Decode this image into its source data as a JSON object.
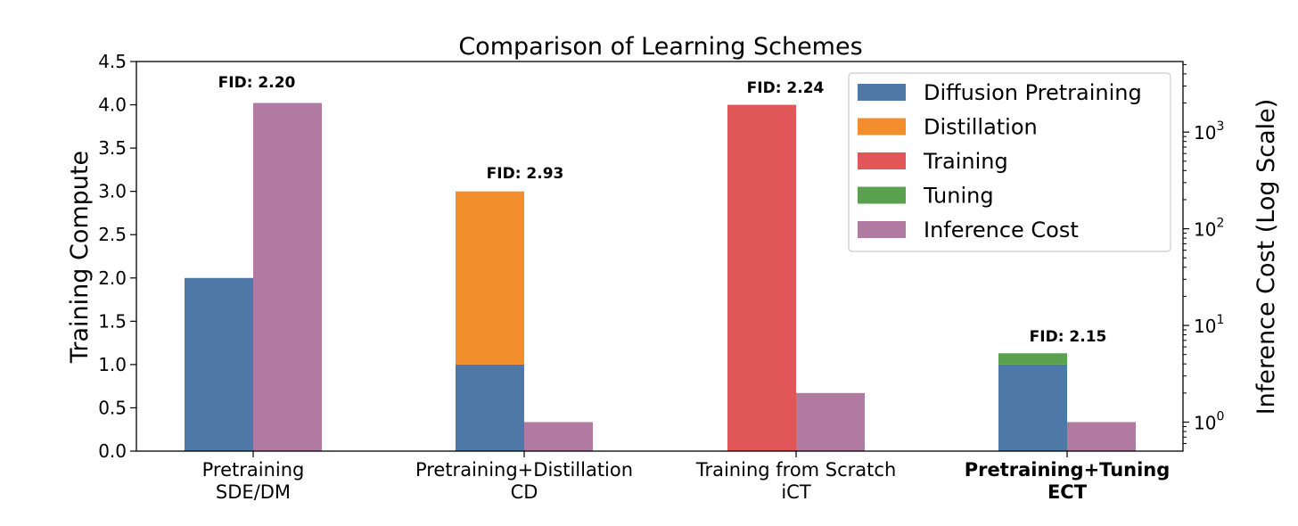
{
  "chart_data": {
    "type": "bar",
    "title": "Comparison of Learning Schemes",
    "ylabel": "Training Compute",
    "y2label": "Inference Cost (Log Scale)",
    "ylim": [
      0,
      4.5
    ],
    "yticks": [
      "0.0",
      "0.5",
      "1.0",
      "1.5",
      "2.0",
      "2.5",
      "3.0",
      "3.5",
      "4.0",
      "4.5"
    ],
    "y2scale": "log",
    "y2ticks": [
      {
        "base": "10",
        "exp": "0",
        "value": 1
      },
      {
        "base": "10",
        "exp": "1",
        "value": 10
      },
      {
        "base": "10",
        "exp": "2",
        "value": 100
      },
      {
        "base": "10",
        "exp": "3",
        "value": 1000
      }
    ],
    "categories": [
      {
        "line1": "Pretraining",
        "line2": "SDE/DM",
        "bold": false
      },
      {
        "line1": "Pretraining+Distillation",
        "line2": "CD",
        "bold": false
      },
      {
        "line1": "Training from Scratch",
        "line2": "iCT",
        "bold": false
      },
      {
        "line1": "Pretraining+Tuning",
        "line2": "ECT",
        "bold": true
      }
    ],
    "series": [
      {
        "name": "Diffusion Pretraining",
        "color": "#4e79a7",
        "values": [
          2.0,
          1.0,
          0,
          1.0
        ]
      },
      {
        "name": "Distillation",
        "color": "#f28e2b",
        "values": [
          0,
          2.0,
          0,
          0
        ]
      },
      {
        "name": "Training",
        "color": "#e15759",
        "values": [
          0,
          0,
          4.0,
          0
        ]
      },
      {
        "name": "Tuning",
        "color": "#59a14f",
        "values": [
          0,
          0,
          0,
          0.13
        ]
      },
      {
        "name": "Inference Cost",
        "color": "#b07aa1",
        "values": [
          2000,
          1,
          2,
          1
        ]
      }
    ],
    "fid_labels": [
      "FID: 2.20",
      "FID: 2.93",
      "FID: 2.24",
      "FID: 2.15"
    ],
    "legend_position": "top-right",
    "grid": false
  }
}
